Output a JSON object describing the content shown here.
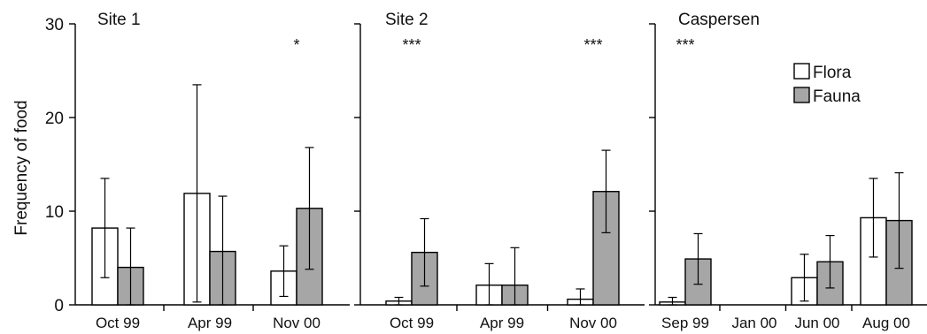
{
  "colors": {
    "flora": "#ffffff",
    "fauna": "#a6a6a6",
    "axis": "#000000"
  },
  "chart_data": {
    "type": "bar",
    "ylabel": "Frequency of food",
    "ylim": [
      0,
      30
    ],
    "yticks": [
      0,
      10,
      20,
      30
    ],
    "legend": {
      "placement": "top-right of third panel",
      "items": [
        {
          "label": "Flora",
          "color": "#ffffff"
        },
        {
          "label": "Fauna",
          "color": "#a6a6a6"
        }
      ]
    },
    "panels": [
      {
        "title": "Site 1",
        "categories": [
          "Oct 99",
          "Apr 99",
          "Nov 00"
        ],
        "series": [
          {
            "name": "Flora",
            "values": [
              8.2,
              11.9,
              3.6
            ],
            "error": [
              5.3,
              11.6,
              2.7
            ]
          },
          {
            "name": "Fauna",
            "values": [
              4.0,
              5.7,
              10.3
            ],
            "error": [
              4.2,
              5.9,
              6.5
            ]
          }
        ],
        "significance": [
          "",
          "",
          "*"
        ]
      },
      {
        "title": "Site 2",
        "categories": [
          "Oct 99",
          "Apr 99",
          "Nov 00"
        ],
        "series": [
          {
            "name": "Flora",
            "values": [
              0.4,
              2.1,
              0.6
            ],
            "error": [
              0.4,
              2.3,
              1.1
            ]
          },
          {
            "name": "Fauna",
            "values": [
              5.6,
              2.1,
              12.1
            ],
            "error": [
              3.6,
              4.0,
              4.4
            ]
          }
        ],
        "significance": [
          "***",
          "",
          "***"
        ]
      },
      {
        "title": "Caspersen",
        "categories": [
          "Sep 99",
          "Jan 00",
          "Jun 00",
          "Aug 00"
        ],
        "series": [
          {
            "name": "Flora",
            "values": [
              0.3,
              0,
              2.9,
              9.3
            ],
            "error": [
              0.5,
              0,
              2.5,
              4.2
            ]
          },
          {
            "name": "Fauna",
            "values": [
              4.9,
              0,
              4.6,
              9.0
            ],
            "error": [
              2.7,
              0,
              2.8,
              5.1
            ]
          }
        ],
        "significance": [
          "***",
          "",
          "",
          ""
        ]
      }
    ]
  }
}
